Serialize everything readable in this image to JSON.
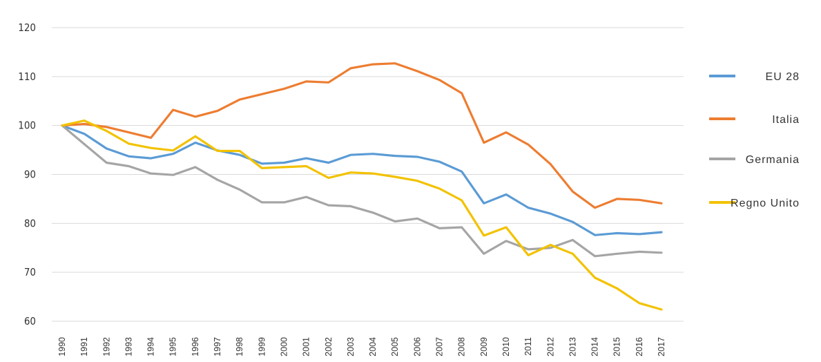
{
  "chart_data": {
    "type": "line",
    "title": "",
    "xlabel": "",
    "ylabel": "",
    "ylim": [
      60,
      120
    ],
    "yticks": [
      "60",
      "70",
      "80",
      "90",
      "100",
      "110",
      "120"
    ],
    "grid": true,
    "legend_position": "right",
    "categories": [
      "1990",
      "1991",
      "1992",
      "1993",
      "1994",
      "1995",
      "1996",
      "1997",
      "1998",
      "1999",
      "2000",
      "2001",
      "2002",
      "2003",
      "2004",
      "2005",
      "2006",
      "2007",
      "2008",
      "2009",
      "2010",
      "2011",
      "2012",
      "2013",
      "2014",
      "2015",
      "2016",
      "2017"
    ],
    "series": [
      {
        "name": "EU 28",
        "color": "#5b9bd5",
        "values": [
          100,
          98.3,
          95.3,
          93.7,
          93.3,
          94.2,
          96.5,
          94.9,
          94.0,
          92.2,
          92.4,
          93.3,
          92.4,
          94.0,
          94.2,
          93.8,
          93.6,
          92.6,
          90.6,
          84.1,
          85.9,
          83.2,
          82.0,
          80.3,
          77.6,
          78.0,
          77.8,
          78.2
        ]
      },
      {
        "name": "Italia",
        "color": "#ed7d31",
        "values": [
          100,
          100.3,
          99.7,
          98.6,
          97.5,
          103.2,
          101.8,
          103.0,
          105.3,
          106.4,
          107.5,
          109.0,
          108.8,
          111.7,
          112.5,
          112.7,
          111.1,
          109.3,
          106.6,
          96.5,
          98.6,
          96.1,
          92.1,
          86.5,
          83.2,
          85.0,
          84.8,
          84.1
        ]
      },
      {
        "name": "Germania",
        "color": "#a5a5a5",
        "values": [
          100,
          96.2,
          92.4,
          91.7,
          90.2,
          89.9,
          91.5,
          88.9,
          86.9,
          84.3,
          84.3,
          85.4,
          83.7,
          83.5,
          82.2,
          80.4,
          81.0,
          79.0,
          79.2,
          73.8,
          76.4,
          74.7,
          75.0,
          76.6,
          73.3,
          73.8,
          74.2,
          74.0
        ]
      },
      {
        "name": "Regno Unito",
        "color": "#f2c200",
        "values": [
          100,
          101.0,
          98.9,
          96.3,
          95.4,
          94.9,
          97.8,
          94.8,
          94.8,
          91.3,
          91.5,
          91.7,
          89.3,
          90.4,
          90.2,
          89.5,
          88.7,
          87.1,
          84.7,
          77.5,
          79.2,
          73.5,
          75.6,
          73.8,
          68.9,
          66.7,
          63.7,
          62.4
        ]
      }
    ]
  }
}
